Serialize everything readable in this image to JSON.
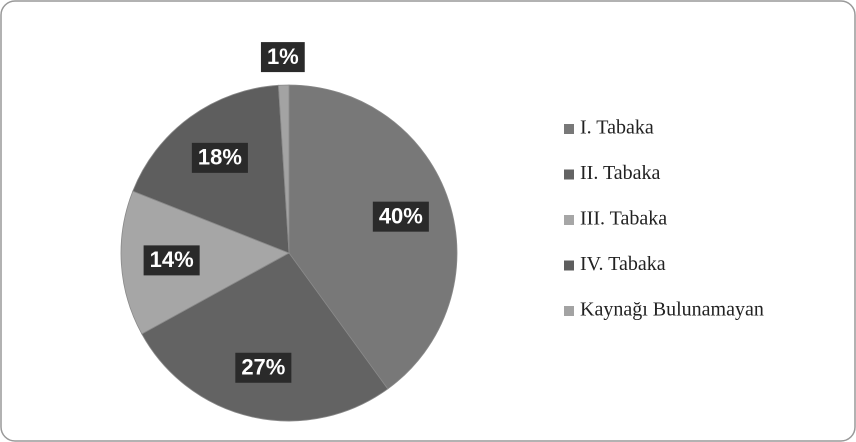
{
  "chart_data": {
    "type": "pie",
    "categories": [
      "I. Tabaka",
      "II. Tabaka",
      "III. Tabaka",
      "IV. Tabaka",
      "Kaynağı Bulunamayan"
    ],
    "values": [
      40,
      27,
      14,
      18,
      1
    ],
    "value_labels": [
      "40%",
      "27%",
      "14%",
      "18%",
      "1%"
    ],
    "colors": [
      "#787878",
      "#636363",
      "#a6a6a6",
      "#5e5e5e",
      "#a3a3a3"
    ],
    "legend": "right"
  }
}
